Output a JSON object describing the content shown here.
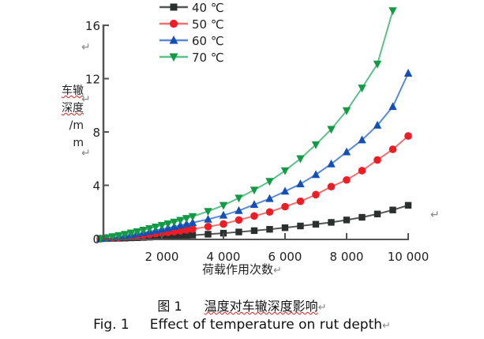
{
  "chart_data": {
    "type": "line",
    "title": "",
    "xlabel": "荷载作用次数",
    "ylabel_lines": [
      "车辙",
      "深度",
      "/m",
      "m"
    ],
    "xlim": [
      0,
      10000
    ],
    "ylim": [
      0,
      16
    ],
    "x_ticks": [
      2000,
      4000,
      6000,
      8000,
      10000
    ],
    "x_tick_labels": [
      "2 000",
      "4 000",
      "6 000",
      "8 000",
      "10 000"
    ],
    "y_ticks": [
      0,
      4,
      8,
      12,
      16
    ],
    "y_tick_labels": [
      "0",
      "4",
      "8",
      "12",
      "16"
    ],
    "legend_position": "top",
    "x": [
      0,
      200,
      400,
      600,
      800,
      1000,
      1200,
      1400,
      1600,
      1800,
      2000,
      2200,
      2400,
      2600,
      2800,
      3000,
      3500,
      4000,
      4500,
      5000,
      5500,
      6000,
      6500,
      7000,
      7500,
      8000,
      8500,
      9000,
      9500,
      10000
    ],
    "series": [
      {
        "name": "40 ℃",
        "marker": "square",
        "color": "#2b2f2e",
        "line_color": "#555555",
        "values": [
          0,
          0.01,
          0.02,
          0.03,
          0.04,
          0.06,
          0.07,
          0.09,
          0.11,
          0.13,
          0.15,
          0.17,
          0.19,
          0.21,
          0.24,
          0.26,
          0.33,
          0.41,
          0.5,
          0.6,
          0.7,
          0.82,
          0.95,
          1.08,
          1.22,
          1.4,
          1.6,
          1.85,
          2.15,
          2.5
        ]
      },
      {
        "name": "50 ℃",
        "marker": "circle",
        "color": "#ee1c25",
        "line_color": "#f07070",
        "values": [
          0,
          0.03,
          0.06,
          0.1,
          0.14,
          0.18,
          0.22,
          0.27,
          0.32,
          0.37,
          0.42,
          0.47,
          0.53,
          0.59,
          0.65,
          0.72,
          0.9,
          1.1,
          1.4,
          1.7,
          2.0,
          2.4,
          2.8,
          3.3,
          3.9,
          4.4,
          5.1,
          5.9,
          6.7,
          7.7
        ]
      },
      {
        "name": "60 ℃",
        "marker": "triangle-up",
        "color": "#1450b4",
        "line_color": "#5a8ad6",
        "values": [
          0,
          0.05,
          0.1,
          0.16,
          0.23,
          0.3,
          0.37,
          0.45,
          0.53,
          0.62,
          0.71,
          0.8,
          0.9,
          1.0,
          1.1,
          1.2,
          1.45,
          1.75,
          2.1,
          2.55,
          3.0,
          3.55,
          4.1,
          4.8,
          5.6,
          6.5,
          7.4,
          8.5,
          9.9,
          12.4
        ]
      },
      {
        "name": "70 ℃",
        "marker": "triangle-down",
        "color": "#129a44",
        "line_color": "#5cc08a",
        "values": [
          0,
          0.07,
          0.15,
          0.24,
          0.33,
          0.43,
          0.53,
          0.64,
          0.76,
          0.88,
          1.0,
          1.12,
          1.25,
          1.38,
          1.52,
          1.66,
          2.05,
          2.5,
          3.05,
          3.65,
          4.3,
          5.1,
          6.0,
          7.05,
          8.2,
          9.6,
          11.3,
          13.1,
          17.1,
          null
        ]
      }
    ]
  },
  "caption": {
    "zh_label": "图 1",
    "zh_title": "温度对车辙深度影响",
    "en_label": "Fig. 1",
    "en_title": "Effect of temperature on rut depth"
  },
  "marks": {
    "return_symbol": "↵"
  }
}
